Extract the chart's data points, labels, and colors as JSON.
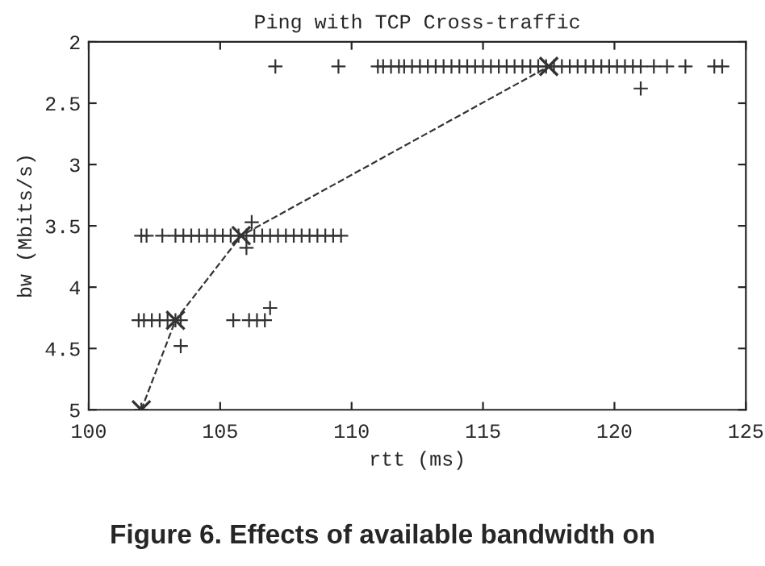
{
  "chart_data": {
    "type": "scatter",
    "title": "Ping with TCP Cross-traffic",
    "xlabel": "rtt (ms)",
    "ylabel": "bw (Mbits/s)",
    "annotations": [
      "Figure 6. Effects of available bandwidth on"
    ],
    "series": [
      {
        "color": "#333333",
        "marker": "cross",
        "x": [
          107.1,
          109.5,
          111.0,
          111.2,
          111.5,
          111.8,
          112.0,
          112.3,
          112.6,
          112.9,
          113.2,
          113.5,
          113.8,
          114.1,
          114.4,
          114.7,
          115.0,
          115.3,
          115.6,
          115.9,
          116.2,
          116.5,
          116.8,
          117.1,
          117.4,
          117.7,
          118.0,
          118.3,
          118.6,
          118.9,
          119.2,
          119.5,
          119.8,
          120.1,
          120.4,
          120.7,
          121.0,
          121.5,
          122.0,
          122.7,
          123.8,
          124.1,
          121.0,
          102.0,
          102.2,
          102.8,
          103.3,
          103.6,
          103.9,
          104.2,
          104.5,
          104.8,
          105.1,
          105.4,
          105.7,
          106.0,
          106.3,
          106.6,
          106.9,
          107.2,
          107.5,
          107.8,
          108.1,
          108.4,
          108.7,
          109.0,
          109.3,
          109.6,
          106.2,
          106.0,
          101.9,
          102.1,
          102.4,
          102.7,
          103.0,
          103.3,
          103.5,
          105.5,
          106.1,
          106.4,
          106.7,
          106.9,
          103.5,
          102.0
        ],
        "values": [
          2.2,
          2.2,
          2.2,
          2.2,
          2.2,
          2.2,
          2.2,
          2.2,
          2.2,
          2.2,
          2.2,
          2.2,
          2.2,
          2.2,
          2.2,
          2.2,
          2.2,
          2.2,
          2.2,
          2.2,
          2.2,
          2.2,
          2.2,
          2.2,
          2.2,
          2.2,
          2.2,
          2.2,
          2.2,
          2.2,
          2.2,
          2.2,
          2.2,
          2.2,
          2.2,
          2.2,
          2.2,
          2.2,
          2.2,
          2.2,
          2.2,
          2.2,
          2.38,
          3.58,
          3.58,
          3.58,
          3.58,
          3.58,
          3.58,
          3.58,
          3.58,
          3.58,
          3.58,
          3.58,
          3.58,
          3.58,
          3.58,
          3.58,
          3.58,
          3.58,
          3.58,
          3.58,
          3.58,
          3.58,
          3.58,
          3.58,
          3.58,
          3.58,
          3.47,
          3.68,
          4.27,
          4.27,
          4.27,
          4.27,
          4.27,
          4.27,
          4.27,
          4.27,
          4.27,
          4.27,
          4.27,
          4.17,
          4.48,
          5.0
        ]
      },
      {
        "type": "line",
        "color": "#333333",
        "marker": "cross",
        "line_style": "dashed",
        "x": [
          102.0,
          103.3,
          105.8,
          117.5
        ],
        "values": [
          5.0,
          4.27,
          3.58,
          2.2
        ]
      }
    ],
    "xlim": [
      100,
      125
    ],
    "xticks": [
      100,
      105,
      110,
      115,
      120,
      125
    ],
    "ylim": [
      5,
      2
    ],
    "yticks": [
      2,
      2.5,
      3,
      3.5,
      4,
      4.5,
      5
    ],
    "grid": false
  }
}
